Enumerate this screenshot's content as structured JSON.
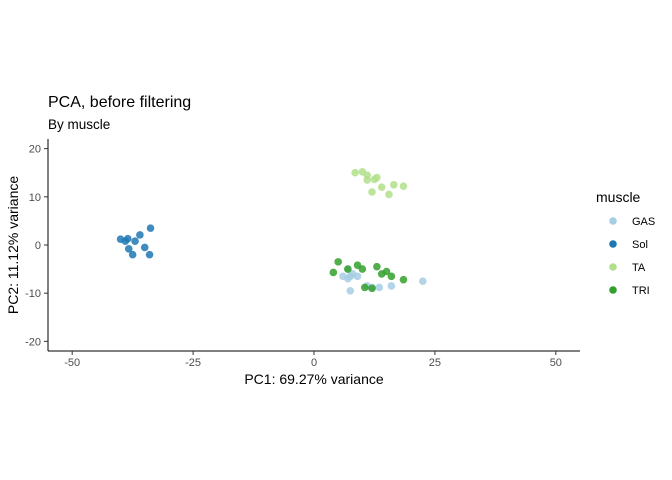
{
  "chart_data": {
    "type": "scatter",
    "title": "PCA, before filtering",
    "subtitle": "By muscle",
    "xlabel": "PC1: 69.27% variance",
    "ylabel": "PC2: 11.12% variance",
    "xlim": [
      -55,
      55
    ],
    "ylim": [
      -22,
      22
    ],
    "xticks": [
      -50,
      -25,
      0,
      25,
      50
    ],
    "yticks": [
      -20,
      -10,
      0,
      10,
      20
    ],
    "grid": false,
    "legend": {
      "title": "muscle",
      "position": "right"
    },
    "series": [
      {
        "name": "GAS",
        "color": "#a6cee3",
        "points": [
          [
            6,
            -6.5
          ],
          [
            7,
            -5
          ],
          [
            7.5,
            -6.5
          ],
          [
            8,
            -6
          ],
          [
            9,
            -6.5
          ],
          [
            7,
            -7
          ],
          [
            11,
            -8.5
          ],
          [
            13.5,
            -8.8
          ],
          [
            16,
            -8.5
          ],
          [
            22.5,
            -7.5
          ],
          [
            7.5,
            -9.5
          ],
          [
            12,
            -8.8
          ]
        ]
      },
      {
        "name": "Sol",
        "color": "#1f78b4",
        "points": [
          [
            -40,
            1.2
          ],
          [
            -39,
            0.8
          ],
          [
            -38.5,
            1.3
          ],
          [
            -38.3,
            -0.8
          ],
          [
            -37.5,
            -2
          ],
          [
            -37,
            0.8
          ],
          [
            -36,
            2.1
          ],
          [
            -35,
            -0.5
          ],
          [
            -34,
            -2
          ],
          [
            -33.8,
            3.5
          ]
        ]
      },
      {
        "name": "TA",
        "color": "#b2df8a",
        "points": [
          [
            8.5,
            15
          ],
          [
            10,
            15.2
          ],
          [
            11,
            14.5
          ],
          [
            11,
            13.5
          ],
          [
            12.5,
            13.6
          ],
          [
            13,
            14
          ],
          [
            12,
            11
          ],
          [
            14,
            12
          ],
          [
            15.5,
            10.5
          ],
          [
            16.5,
            12.5
          ],
          [
            18.5,
            12.2
          ]
        ]
      },
      {
        "name": "TRI",
        "color": "#33a02c",
        "points": [
          [
            4,
            -5.7
          ],
          [
            5,
            -3.5
          ],
          [
            7,
            -5
          ],
          [
            9,
            -4.2
          ],
          [
            10,
            -5
          ],
          [
            13,
            -4.5
          ],
          [
            14,
            -6
          ],
          [
            15,
            -5.5
          ],
          [
            16,
            -6.5
          ],
          [
            18.5,
            -7.2
          ],
          [
            12,
            -9
          ],
          [
            10.5,
            -8.8
          ]
        ]
      }
    ]
  }
}
